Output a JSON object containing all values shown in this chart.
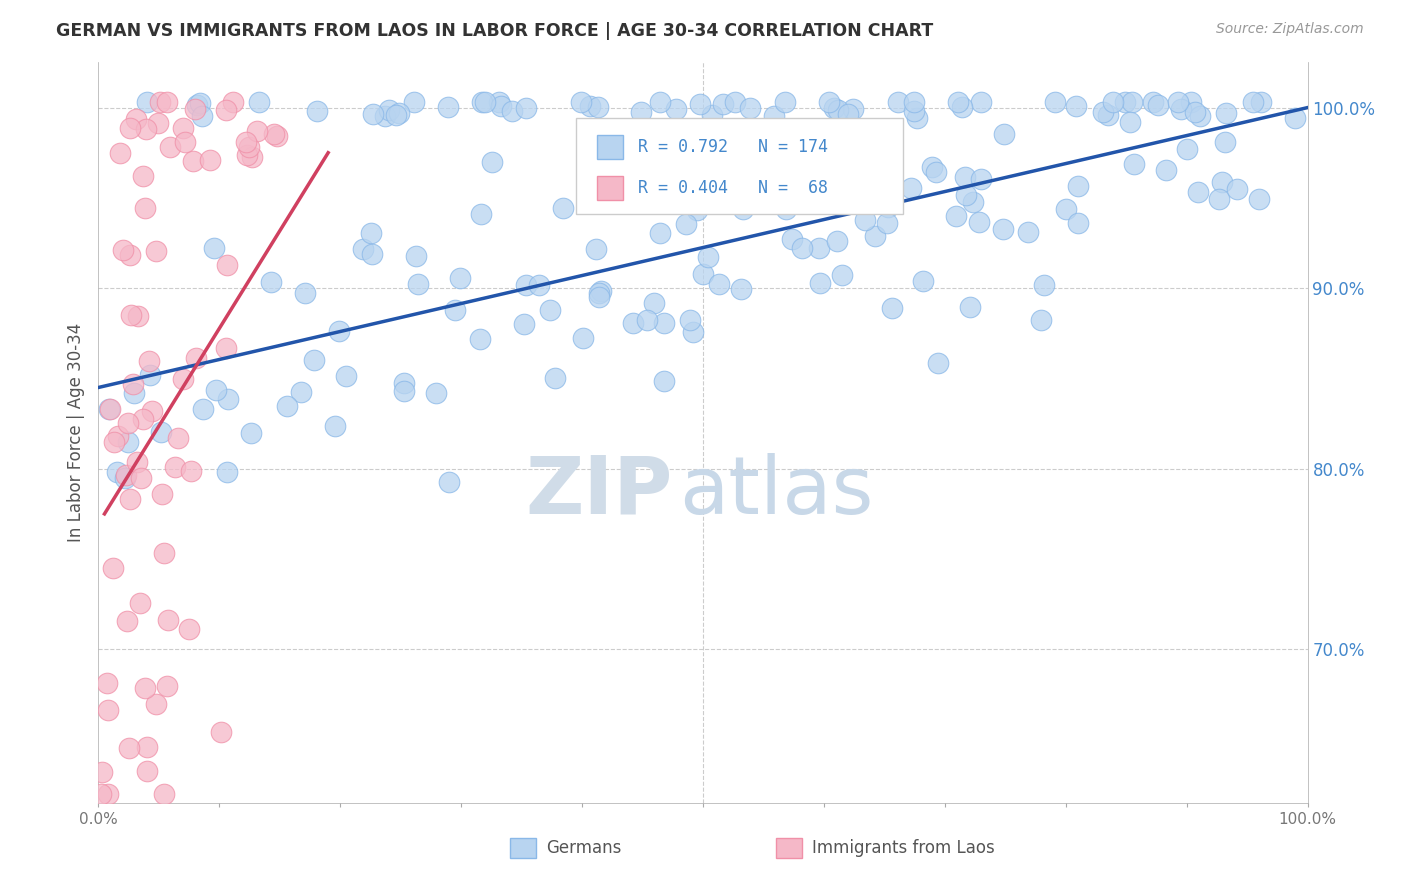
{
  "title": "GERMAN VS IMMIGRANTS FROM LAOS IN LABOR FORCE | AGE 30-34 CORRELATION CHART",
  "source": "Source: ZipAtlas.com",
  "ylabel": "In Labor Force | Age 30-34",
  "xlim": [
    0.0,
    1.0
  ],
  "ylim": [
    0.615,
    1.025
  ],
  "yticks": [
    0.7,
    0.8,
    0.9,
    1.0
  ],
  "ytick_labels": [
    "70.0%",
    "80.0%",
    "90.0%",
    "100.0%"
  ],
  "xticks": [
    0.0,
    0.1,
    0.2,
    0.3,
    0.4,
    0.5,
    0.6,
    0.7,
    0.8,
    0.9,
    1.0
  ],
  "xtick_labels": [
    "0.0%",
    "",
    "",
    "",
    "",
    "",
    "",
    "",
    "",
    "",
    "100.0%"
  ],
  "german_color": "#b8d4f0",
  "laos_color": "#f5b8c8",
  "german_edge_color": "#8ab8e8",
  "laos_edge_color": "#f090a8",
  "german_line_color": "#2255aa",
  "laos_line_color": "#d04060",
  "watermark_zip": "ZIP",
  "watermark_atlas": "atlas",
  "watermark_color": "#dce8f4",
  "background_color": "#ffffff",
  "grid_color": "#cccccc",
  "german_R": 0.792,
  "german_N": 174,
  "laos_R": 0.404,
  "laos_N": 68,
  "german_line_x": [
    0.0,
    1.0
  ],
  "german_line_y": [
    0.845,
    1.0
  ],
  "laos_line_x": [
    0.005,
    0.19
  ],
  "laos_line_y": [
    0.775,
    0.975
  ],
  "tick_color": "#4488cc",
  "legend_text_color": "#4488cc",
  "title_color": "#333333",
  "source_color": "#999999",
  "ylabel_color": "#555555"
}
